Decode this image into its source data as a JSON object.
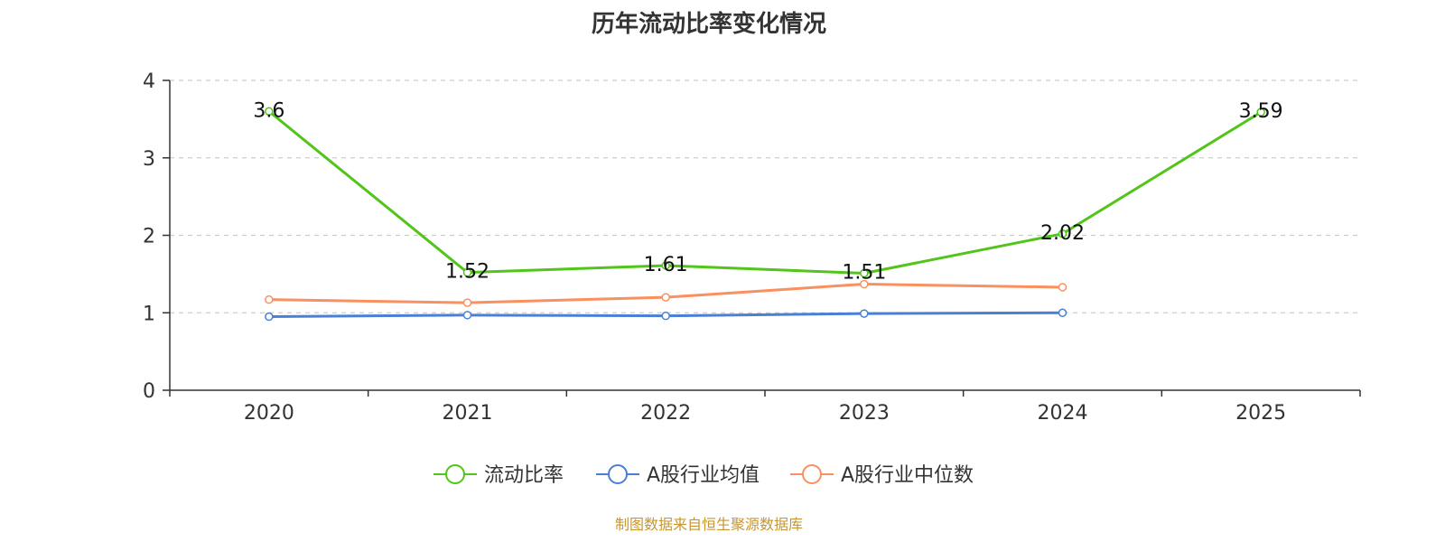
{
  "chart_data": {
    "type": "line",
    "title": "历年流动比率变化情况",
    "categories": [
      "2020",
      "2021",
      "2022",
      "2023",
      "2024",
      "2025"
    ],
    "yticks": [
      "0",
      "1",
      "2",
      "3",
      "4"
    ],
    "ylim": [
      0,
      4
    ],
    "grid": true,
    "legend_position": "bottom",
    "series": [
      {
        "name": "流动比率",
        "color": "#52c41a",
        "values": [
          3.6,
          1.52,
          1.61,
          1.51,
          2.02,
          3.59
        ],
        "labels": [
          "3.6",
          "1.52",
          "1.61",
          "1.51",
          "2.02",
          "3.59"
        ]
      },
      {
        "name": "A股行业均值",
        "color": "#4a7fd6",
        "values": [
          0.95,
          0.97,
          0.96,
          0.99,
          1.0,
          null
        ]
      },
      {
        "name": "A股行业中位数",
        "color": "#f89060",
        "values": [
          1.17,
          1.13,
          1.2,
          1.37,
          1.33,
          null
        ]
      }
    ]
  },
  "footer": {
    "source": "制图数据来自恒生聚源数据库"
  }
}
